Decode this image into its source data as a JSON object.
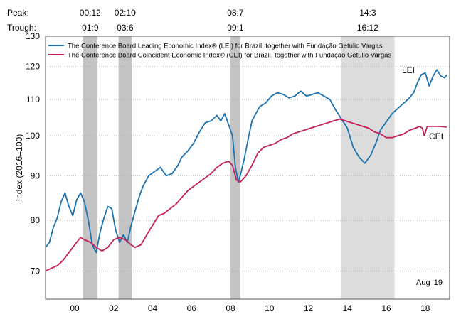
{
  "chart_data": {
    "type": "line",
    "ylabel": "Index (2016=100)",
    "y_scale": "log",
    "ylim": [
      65,
      130
    ],
    "xlim": [
      1999.0,
      2019.75
    ],
    "yticks": [
      70,
      80,
      90,
      100,
      110,
      120,
      130
    ],
    "xticks": [
      {
        "label": "00",
        "value": 2000.5
      },
      {
        "label": "02",
        "value": 2002.5
      },
      {
        "label": "04",
        "value": 2004.5
      },
      {
        "label": "06",
        "value": 2006.5
      },
      {
        "label": "08",
        "value": 2008.5
      },
      {
        "label": "10",
        "value": 2010.5
      },
      {
        "label": "12",
        "value": 2012.5
      },
      {
        "label": "14",
        "value": 2014.5
      },
      {
        "label": "16",
        "value": 2016.5
      },
      {
        "label": "18",
        "value": 2018.5
      }
    ],
    "grid": true,
    "legend_position": "top-left",
    "recession_header": {
      "peak_label": "Peak:",
      "trough_label": "Trough:"
    },
    "recessions": [
      {
        "peak": "00:12",
        "trough": "01:9",
        "start": 2000.92,
        "end": 2001.67
      },
      {
        "peak": "02:10",
        "trough": "03:6",
        "start": 2002.75,
        "end": 2003.42
      },
      {
        "peak": "08:7",
        "trough": "09:1",
        "start": 2008.5,
        "end": 2009.0
      },
      {
        "peak": "14:3",
        "trough": "16:12",
        "start": 2014.17,
        "end": 2016.92
      }
    ],
    "annotation": "Aug '19",
    "series": [
      {
        "name": "The Conference Board Leading Economic Index® (LEI) for Brazil, together with Fundação Getulio Vargas",
        "label": "LEI",
        "color": "#1a72b0",
        "x": [
          1999.0,
          1999.2,
          1999.4,
          1999.6,
          1999.8,
          2000.0,
          2000.2,
          2000.4,
          2000.6,
          2000.8,
          2001.0,
          2001.2,
          2001.4,
          2001.6,
          2001.8,
          2002.0,
          2002.2,
          2002.4,
          2002.6,
          2002.8,
          2003.0,
          2003.2,
          2003.4,
          2003.6,
          2003.8,
          2004.0,
          2004.3,
          2004.6,
          2004.9,
          2005.2,
          2005.5,
          2005.8,
          2006.0,
          2006.3,
          2006.6,
          2006.9,
          2007.2,
          2007.5,
          2007.8,
          2008.0,
          2008.2,
          2008.4,
          2008.6,
          2008.75,
          2008.9,
          2009.0,
          2009.2,
          2009.4,
          2009.6,
          2009.8,
          2010.0,
          2010.3,
          2010.6,
          2010.9,
          2011.2,
          2011.5,
          2011.8,
          2012.1,
          2012.4,
          2012.7,
          2013.0,
          2013.3,
          2013.6,
          2013.9,
          2014.2,
          2014.5,
          2014.8,
          2015.1,
          2015.4,
          2015.7,
          2016.0,
          2016.2,
          2016.4,
          2016.6,
          2016.8,
          2017.0,
          2017.3,
          2017.6,
          2017.9,
          2018.1,
          2018.3,
          2018.5,
          2018.7,
          2018.9,
          2019.1,
          2019.3,
          2019.5,
          2019.6
        ],
        "values": [
          74.5,
          75.5,
          78.5,
          80.5,
          84.0,
          86.0,
          83.0,
          81.0,
          84.5,
          86.0,
          84.0,
          80.0,
          75.0,
          73.5,
          77.5,
          80.5,
          83.0,
          82.5,
          78.0,
          75.5,
          77.0,
          75.5,
          79.0,
          82.0,
          85.0,
          87.5,
          90.0,
          91.0,
          92.0,
          90.0,
          90.5,
          92.5,
          94.5,
          96.0,
          98.0,
          101.0,
          103.5,
          104.0,
          105.5,
          104.0,
          106.0,
          103.0,
          100.0,
          92.0,
          88.5,
          90.0,
          94.0,
          99.0,
          104.0,
          106.0,
          108.0,
          109.0,
          111.0,
          112.0,
          111.5,
          110.5,
          111.0,
          112.5,
          111.0,
          111.5,
          112.0,
          111.0,
          110.0,
          107.0,
          104.5,
          102.0,
          97.0,
          94.5,
          93.0,
          95.0,
          98.5,
          101.5,
          103.0,
          104.5,
          106.0,
          107.0,
          108.5,
          110.0,
          112.0,
          115.0,
          117.5,
          118.0,
          114.0,
          117.0,
          119.0,
          117.0,
          116.5,
          117.5
        ]
      },
      {
        "name": "The Conference Board Coincident Economic Index® (CEI) for Brazil, together with Fundação Getulio Vargas",
        "label": "CEI",
        "color": "#c41e5a",
        "x": [
          1999.0,
          1999.3,
          1999.6,
          1999.9,
          2000.2,
          2000.5,
          2000.8,
          2001.0,
          2001.3,
          2001.6,
          2001.9,
          2002.2,
          2002.5,
          2002.8,
          2003.1,
          2003.4,
          2003.6,
          2003.9,
          2004.2,
          2004.5,
          2004.8,
          2005.1,
          2005.4,
          2005.7,
          2006.0,
          2006.3,
          2006.6,
          2006.9,
          2007.2,
          2007.5,
          2007.8,
          2008.1,
          2008.4,
          2008.6,
          2008.8,
          2009.0,
          2009.3,
          2009.6,
          2009.9,
          2010.2,
          2010.5,
          2010.8,
          2011.1,
          2011.4,
          2011.7,
          2012.0,
          2012.3,
          2012.6,
          2012.9,
          2013.2,
          2013.5,
          2013.8,
          2014.1,
          2014.4,
          2014.7,
          2015.0,
          2015.3,
          2015.6,
          2015.9,
          2016.2,
          2016.5,
          2016.8,
          2017.1,
          2017.4,
          2017.7,
          2018.0,
          2018.2,
          2018.35,
          2018.45,
          2018.6,
          2018.9,
          2019.2,
          2019.6
        ],
        "values": [
          70.0,
          70.5,
          71.0,
          72.0,
          73.5,
          75.0,
          76.5,
          76.0,
          75.5,
          74.5,
          73.8,
          74.5,
          76.0,
          76.5,
          76.0,
          75.0,
          74.5,
          75.0,
          77.0,
          79.0,
          81.0,
          81.5,
          82.5,
          83.5,
          85.0,
          86.5,
          87.5,
          88.5,
          89.5,
          90.5,
          92.0,
          93.0,
          93.5,
          92.5,
          89.0,
          88.5,
          90.0,
          92.5,
          95.5,
          97.0,
          97.5,
          98.0,
          99.0,
          99.5,
          100.5,
          101.0,
          101.5,
          102.0,
          102.5,
          103.0,
          103.5,
          104.0,
          104.5,
          104.0,
          103.5,
          103.0,
          102.5,
          102.0,
          101.0,
          100.5,
          99.5,
          99.5,
          100.0,
          100.5,
          101.5,
          102.0,
          102.5,
          102.0,
          100.0,
          102.5,
          102.5,
          102.5,
          102.3
        ]
      }
    ]
  }
}
